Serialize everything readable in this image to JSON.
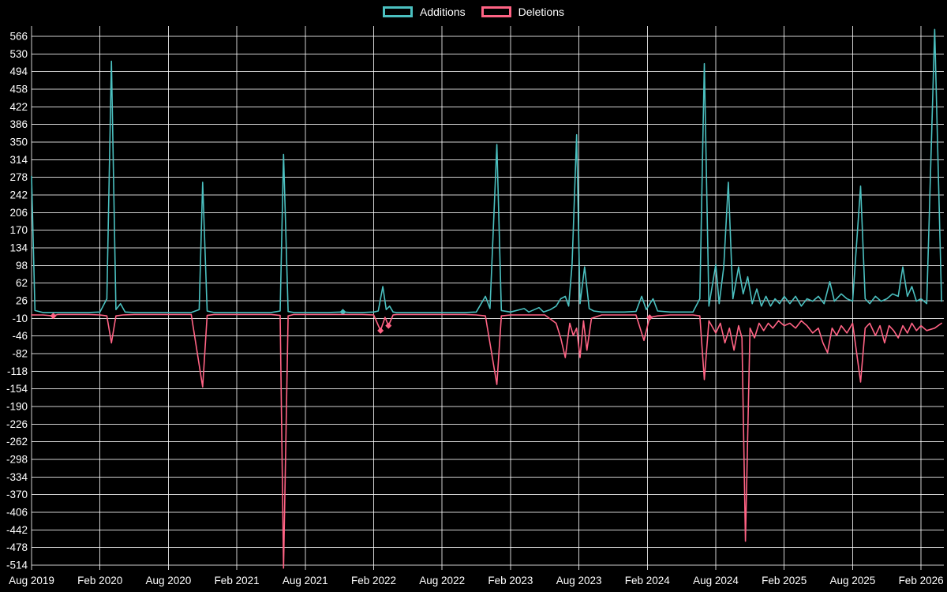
{
  "chart_data": {
    "type": "line",
    "title": "",
    "background_color": "#000000",
    "text_color": "#ffffff",
    "grid": true,
    "grid_color": "#ffffff",
    "legend_position": "top-center",
    "x_axis": {
      "tick_labels": [
        "Aug 2019",
        "Feb 2020",
        "Aug 2020",
        "Feb 2021",
        "Aug 2021",
        "Feb 2022",
        "Aug 2022",
        "Feb 2023",
        "Aug 2023",
        "Feb 2024",
        "Aug 2024",
        "Feb 2025",
        "Aug 2025",
        "Feb 2026"
      ],
      "months_per_tick": 6,
      "domain_months": [
        0,
        80
      ]
    },
    "y_axis": {
      "min": -514,
      "max": 566,
      "step": 36,
      "tick_labels": [
        "566",
        "530",
        "494",
        "458",
        "422",
        "386",
        "350",
        "314",
        "278",
        "242",
        "206",
        "170",
        "134",
        "98",
        "62",
        "26",
        "-10",
        "-46",
        "-82",
        "-118",
        "-154",
        "-190",
        "-226",
        "-262",
        "-298",
        "-334",
        "-370",
        "-406",
        "-442",
        "-478",
        "-514"
      ]
    },
    "series": [
      {
        "name": "Additions",
        "color": "#4bc0c0",
        "points": [
          [
            0,
            280
          ],
          [
            0.3,
            6
          ],
          [
            1,
            2
          ],
          [
            2,
            2
          ],
          [
            3,
            2
          ],
          [
            4,
            2
          ],
          [
            5,
            2
          ],
          [
            6,
            3
          ],
          [
            6.6,
            30
          ],
          [
            7,
            515
          ],
          [
            7.4,
            8
          ],
          [
            7.8,
            20
          ],
          [
            8.2,
            3
          ],
          [
            9,
            2
          ],
          [
            10,
            2
          ],
          [
            11,
            2
          ],
          [
            12,
            2
          ],
          [
            13,
            2
          ],
          [
            14,
            2
          ],
          [
            14.7,
            8
          ],
          [
            15,
            268
          ],
          [
            15.4,
            5
          ],
          [
            16,
            2
          ],
          [
            17,
            2
          ],
          [
            18,
            2
          ],
          [
            19,
            2
          ],
          [
            20,
            2
          ],
          [
            21,
            2
          ],
          [
            21.8,
            5
          ],
          [
            22.1,
            325
          ],
          [
            22.5,
            4
          ],
          [
            23,
            2
          ],
          [
            24,
            2
          ],
          [
            25,
            2
          ],
          [
            26,
            2
          ],
          [
            27.3,
            3
          ],
          [
            28,
            2
          ],
          [
            29,
            2
          ],
          [
            30,
            3
          ],
          [
            30.4,
            5
          ],
          [
            30.8,
            55
          ],
          [
            31.1,
            8
          ],
          [
            31.4,
            15
          ],
          [
            31.7,
            3
          ],
          [
            32,
            2
          ],
          [
            33,
            2
          ],
          [
            34,
            2
          ],
          [
            35,
            2
          ],
          [
            36,
            2
          ],
          [
            37,
            2
          ],
          [
            38,
            2
          ],
          [
            39,
            3
          ],
          [
            39.8,
            35
          ],
          [
            40.2,
            10
          ],
          [
            40.8,
            345
          ],
          [
            41.2,
            6
          ],
          [
            42,
            3
          ],
          [
            43.2,
            10
          ],
          [
            43.6,
            3
          ],
          [
            44.5,
            12
          ],
          [
            44.9,
            3
          ],
          [
            45.5,
            8
          ],
          [
            46,
            15
          ],
          [
            46.4,
            30
          ],
          [
            46.8,
            35
          ],
          [
            47.1,
            15
          ],
          [
            47.4,
            100
          ],
          [
            47.8,
            365
          ],
          [
            48.1,
            20
          ],
          [
            48.5,
            95
          ],
          [
            48.9,
            10
          ],
          [
            49.3,
            5
          ],
          [
            50,
            3
          ],
          [
            51,
            3
          ],
          [
            52,
            3
          ],
          [
            53,
            4
          ],
          [
            53.5,
            35
          ],
          [
            53.9,
            8
          ],
          [
            54.5,
            30
          ],
          [
            54.9,
            5
          ],
          [
            56,
            3
          ],
          [
            57,
            3
          ],
          [
            58,
            3
          ],
          [
            58.6,
            30
          ],
          [
            59,
            510
          ],
          [
            59.4,
            15
          ],
          [
            60,
            100
          ],
          [
            60.3,
            20
          ],
          [
            60.7,
            95
          ],
          [
            61.1,
            268
          ],
          [
            61.5,
            30
          ],
          [
            62,
            95
          ],
          [
            62.4,
            40
          ],
          [
            62.8,
            75
          ],
          [
            63.2,
            20
          ],
          [
            63.6,
            50
          ],
          [
            64,
            15
          ],
          [
            64.4,
            35
          ],
          [
            64.8,
            15
          ],
          [
            65.2,
            30
          ],
          [
            65.6,
            20
          ],
          [
            66,
            35
          ],
          [
            66.5,
            20
          ],
          [
            67,
            35
          ],
          [
            67.5,
            15
          ],
          [
            68,
            30
          ],
          [
            68.5,
            25
          ],
          [
            69,
            35
          ],
          [
            69.5,
            20
          ],
          [
            70,
            65
          ],
          [
            70.4,
            25
          ],
          [
            71,
            40
          ],
          [
            71.5,
            30
          ],
          [
            72,
            25
          ],
          [
            72.7,
            260
          ],
          [
            73.1,
            30
          ],
          [
            73.5,
            20
          ],
          [
            74,
            35
          ],
          [
            74.5,
            25
          ],
          [
            75,
            30
          ],
          [
            75.5,
            40
          ],
          [
            76,
            35
          ],
          [
            76.4,
            95
          ],
          [
            76.8,
            35
          ],
          [
            77.2,
            55
          ],
          [
            77.6,
            25
          ],
          [
            78,
            30
          ],
          [
            78.5,
            20
          ],
          [
            79.2,
            580
          ],
          [
            79.8,
            25
          ]
        ],
        "marker_t": [
          27.3
        ]
      },
      {
        "name": "Deletions",
        "color": "#ff6384",
        "points": [
          [
            0,
            -3
          ],
          [
            1,
            -3
          ],
          [
            1.9,
            -5
          ],
          [
            2.3,
            -2
          ],
          [
            3,
            -2
          ],
          [
            4,
            -2
          ],
          [
            5,
            -2
          ],
          [
            6,
            -3
          ],
          [
            6.6,
            -5
          ],
          [
            7,
            -60
          ],
          [
            7.4,
            -5
          ],
          [
            8,
            -3
          ],
          [
            9,
            -2
          ],
          [
            10,
            -2
          ],
          [
            11,
            -2
          ],
          [
            12,
            -2
          ],
          [
            13,
            -2
          ],
          [
            14,
            -2
          ],
          [
            15,
            -150
          ],
          [
            15.4,
            -4
          ],
          [
            16,
            -2
          ],
          [
            17,
            -2
          ],
          [
            18,
            -2
          ],
          [
            19,
            -2
          ],
          [
            20,
            -2
          ],
          [
            21,
            -2
          ],
          [
            21.8,
            -4
          ],
          [
            22.1,
            -520
          ],
          [
            22.5,
            -5
          ],
          [
            23,
            -2
          ],
          [
            24,
            -2
          ],
          [
            25,
            -2
          ],
          [
            26,
            -2
          ],
          [
            27,
            -2
          ],
          [
            28,
            -2
          ],
          [
            29,
            -2
          ],
          [
            30,
            -3
          ],
          [
            30.6,
            -35
          ],
          [
            31,
            -8
          ],
          [
            31.3,
            -25
          ],
          [
            31.7,
            -3
          ],
          [
            32,
            -2
          ],
          [
            33,
            -2
          ],
          [
            34,
            -2
          ],
          [
            35,
            -2
          ],
          [
            36,
            -2
          ],
          [
            37,
            -2
          ],
          [
            38,
            -2
          ],
          [
            39,
            -3
          ],
          [
            39.8,
            -5
          ],
          [
            40.8,
            -145
          ],
          [
            41.2,
            -5
          ],
          [
            42,
            -3
          ],
          [
            43,
            -3
          ],
          [
            44,
            -3
          ],
          [
            45,
            -3
          ],
          [
            46,
            -20
          ],
          [
            46.4,
            -50
          ],
          [
            46.8,
            -90
          ],
          [
            47.2,
            -20
          ],
          [
            47.5,
            -45
          ],
          [
            47.8,
            -30
          ],
          [
            48.1,
            -90
          ],
          [
            48.4,
            -15
          ],
          [
            48.7,
            -75
          ],
          [
            49.1,
            -10
          ],
          [
            50,
            -3
          ],
          [
            51,
            -3
          ],
          [
            52,
            -3
          ],
          [
            53,
            -3
          ],
          [
            53.7,
            -55
          ],
          [
            54.2,
            -8
          ],
          [
            54.9,
            -5
          ],
          [
            56,
            -3
          ],
          [
            57,
            -3
          ],
          [
            58,
            -3
          ],
          [
            58.6,
            -5
          ],
          [
            59,
            -135
          ],
          [
            59.4,
            -15
          ],
          [
            60,
            -40
          ],
          [
            60.4,
            -20
          ],
          [
            60.8,
            -60
          ],
          [
            61.2,
            -30
          ],
          [
            61.6,
            -75
          ],
          [
            62,
            -25
          ],
          [
            62.3,
            -50
          ],
          [
            62.6,
            -465
          ],
          [
            63,
            -30
          ],
          [
            63.4,
            -50
          ],
          [
            63.8,
            -20
          ],
          [
            64.2,
            -35
          ],
          [
            64.6,
            -20
          ],
          [
            65,
            -30
          ],
          [
            65.5,
            -15
          ],
          [
            66,
            -25
          ],
          [
            66.5,
            -20
          ],
          [
            67,
            -30
          ],
          [
            67.5,
            -15
          ],
          [
            68,
            -25
          ],
          [
            68.5,
            -40
          ],
          [
            69,
            -30
          ],
          [
            69.4,
            -60
          ],
          [
            69.8,
            -80
          ],
          [
            70.2,
            -30
          ],
          [
            70.6,
            -45
          ],
          [
            71,
            -25
          ],
          [
            71.5,
            -40
          ],
          [
            72,
            -20
          ],
          [
            72.7,
            -140
          ],
          [
            73.1,
            -30
          ],
          [
            73.5,
            -20
          ],
          [
            74,
            -45
          ],
          [
            74.4,
            -25
          ],
          [
            74.8,
            -60
          ],
          [
            75.2,
            -25
          ],
          [
            75.6,
            -35
          ],
          [
            76,
            -50
          ],
          [
            76.4,
            -25
          ],
          [
            76.8,
            -40
          ],
          [
            77.2,
            -20
          ],
          [
            77.6,
            -35
          ],
          [
            78,
            -25
          ],
          [
            78.5,
            -35
          ],
          [
            79.2,
            -30
          ],
          [
            79.8,
            -20
          ]
        ],
        "marker_t": [
          1.9,
          30.6,
          31.3,
          54.2
        ]
      }
    ]
  }
}
